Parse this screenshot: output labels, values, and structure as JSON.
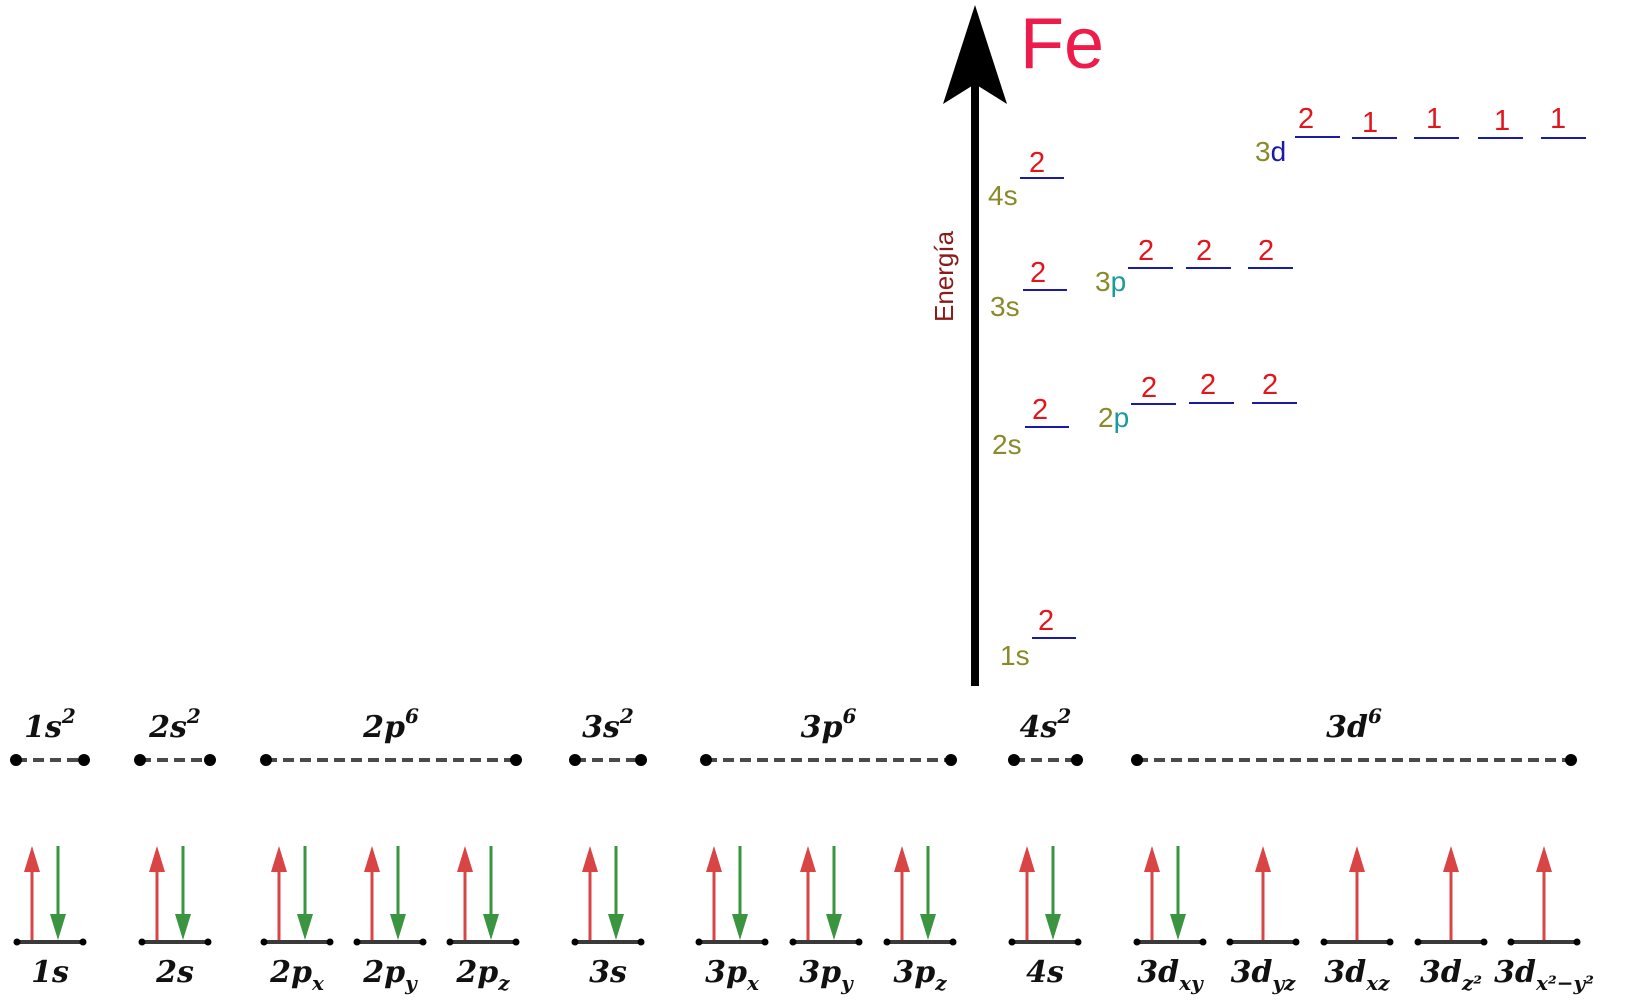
{
  "element": "Fe",
  "axis_label": "Energía",
  "colors": {
    "up": "#d94545",
    "down": "#3a9440",
    "level": "#1a1aa8",
    "occupancy": "#e4141c",
    "element": "#ee1c4a"
  },
  "levels": [
    {
      "n": "1",
      "l": "s",
      "l_color": "#8a8a2a",
      "occupancy": [
        "2"
      ]
    },
    {
      "n": "2",
      "l": "s",
      "l_color": "#8a8a2a",
      "occupancy": [
        "2"
      ]
    },
    {
      "n": "2",
      "l": "p",
      "l_color": "#1a9a9a",
      "occupancy": [
        "2",
        "2",
        "2"
      ]
    },
    {
      "n": "3",
      "l": "s",
      "l_color": "#8a8a2a",
      "occupancy": [
        "2"
      ]
    },
    {
      "n": "3",
      "l": "p",
      "l_color": "#1a9a9a",
      "occupancy": [
        "2",
        "2",
        "2"
      ]
    },
    {
      "n": "4",
      "l": "s",
      "l_color": "#8a8a2a",
      "occupancy": [
        "2"
      ]
    },
    {
      "n": "3",
      "l": "d",
      "l_color": "#1a1aa8",
      "occupancy": [
        "2",
        "1",
        "1",
        "1",
        "1"
      ]
    }
  ],
  "groups": [
    {
      "base": "1s",
      "sup": "2",
      "orbitals": [
        {
          "main": "1s",
          "sub": "",
          "up": true,
          "down": true
        }
      ]
    },
    {
      "base": "2s",
      "sup": "2",
      "orbitals": [
        {
          "main": "2s",
          "sub": "",
          "up": true,
          "down": true
        }
      ]
    },
    {
      "base": "2p",
      "sup": "6",
      "orbitals": [
        {
          "main": "2p",
          "sub": "x",
          "up": true,
          "down": true
        },
        {
          "main": "2p",
          "sub": "y",
          "up": true,
          "down": true
        },
        {
          "main": "2p",
          "sub": "z",
          "up": true,
          "down": true
        }
      ]
    },
    {
      "base": "3s",
      "sup": "2",
      "orbitals": [
        {
          "main": "3s",
          "sub": "",
          "up": true,
          "down": true
        }
      ]
    },
    {
      "base": "3p",
      "sup": "6",
      "orbitals": [
        {
          "main": "3p",
          "sub": "x",
          "up": true,
          "down": true
        },
        {
          "main": "3p",
          "sub": "y",
          "up": true,
          "down": true
        },
        {
          "main": "3p",
          "sub": "z",
          "up": true,
          "down": true
        }
      ]
    },
    {
      "base": "4s",
      "sup": "2",
      "orbitals": [
        {
          "main": "4s",
          "sub": "",
          "up": true,
          "down": true
        }
      ]
    },
    {
      "base": "3d",
      "sup": "6",
      "orbitals": [
        {
          "main": "3d",
          "sub": "xy",
          "up": true,
          "down": true
        },
        {
          "main": "3d",
          "sub": "yz",
          "up": true,
          "down": false
        },
        {
          "main": "3d",
          "sub": "xz",
          "up": true,
          "down": false
        },
        {
          "main": "3d",
          "sub": "z²",
          "up": true,
          "down": false
        },
        {
          "main": "3d",
          "sub": "x²−y²",
          "up": true,
          "down": false
        }
      ]
    }
  ]
}
